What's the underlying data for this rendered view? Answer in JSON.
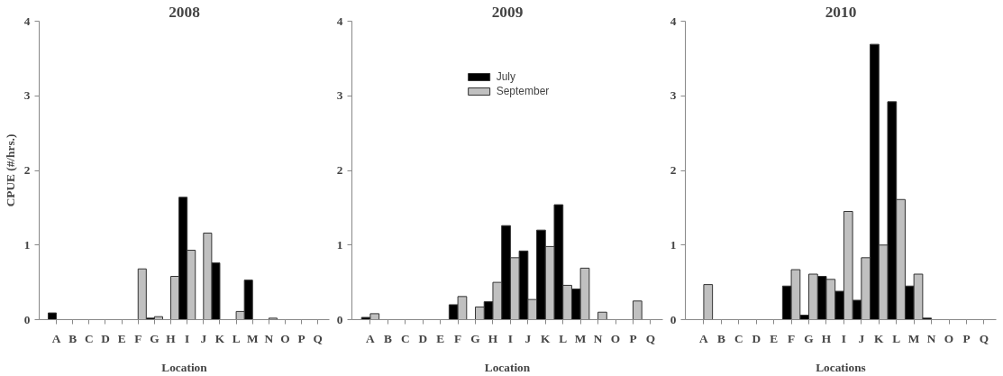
{
  "chart_data": [
    {
      "type": "bar",
      "title": "2008",
      "xlabel": "Location",
      "ylabel": "CPUE (#/hrs.)",
      "categories": [
        "A",
        "B",
        "C",
        "D",
        "E",
        "F",
        "G",
        "H",
        "I",
        "J",
        "K",
        "L",
        "M",
        "N",
        "O",
        "P",
        "Q"
      ],
      "ylim": [
        0,
        4
      ],
      "yticks": [
        0,
        1,
        2,
        3,
        4
      ],
      "grid": false,
      "series": [
        {
          "color": "#000000",
          "values": [
            0.09,
            0,
            0,
            0,
            0,
            0,
            0.02,
            0,
            1.64,
            0,
            0.76,
            0,
            0.53,
            0,
            0,
            0,
            0
          ]
        },
        {
          "color": "#c0c0c0",
          "values": [
            0,
            0,
            0,
            0,
            0,
            0.68,
            0.04,
            0.58,
            0.93,
            1.16,
            0,
            0.11,
            0,
            0.02,
            0,
            0,
            0
          ]
        }
      ]
    },
    {
      "type": "bar",
      "title": "2009",
      "xlabel": "Location",
      "categories": [
        "A",
        "B",
        "C",
        "D",
        "E",
        "F",
        "G",
        "H",
        "I",
        "J",
        "K",
        "L",
        "M",
        "N",
        "O",
        "P",
        "Q"
      ],
      "ylim": [
        0,
        4
      ],
      "yticks": [
        0,
        1,
        2,
        3,
        4
      ],
      "grid": false,
      "legend": "top",
      "series": [
        {
          "name": "July",
          "color": "#000000",
          "values": [
            0.03,
            0,
            0,
            0,
            0,
            0.2,
            0,
            0.24,
            1.26,
            0.92,
            1.2,
            1.54,
            0.41,
            0,
            0,
            0,
            0
          ]
        },
        {
          "name": "September",
          "color": "#c0c0c0",
          "values": [
            0.08,
            0,
            0,
            0,
            0,
            0.31,
            0.17,
            0.5,
            0.83,
            0.27,
            0.98,
            0.46,
            0.69,
            0.1,
            0,
            0.25,
            0
          ]
        }
      ]
    },
    {
      "type": "bar",
      "title": "2010",
      "xlabel": "Locations",
      "categories": [
        "A",
        "B",
        "C",
        "D",
        "E",
        "F",
        "G",
        "H",
        "I",
        "J",
        "K",
        "L",
        "M",
        "N",
        "O",
        "P",
        "Q"
      ],
      "ylim": [
        0,
        4
      ],
      "yticks": [
        0,
        1,
        2,
        3,
        4
      ],
      "grid": false,
      "series": [
        {
          "color": "#000000",
          "values": [
            0,
            0,
            0,
            0,
            0,
            0.45,
            0.06,
            0.58,
            0.38,
            0.26,
            3.69,
            2.92,
            0.45,
            0.02,
            0,
            0,
            0
          ]
        },
        {
          "color": "#c0c0c0",
          "values": [
            0.47,
            0,
            0,
            0,
            0,
            0.67,
            0.61,
            0.54,
            1.45,
            0.83,
            1.0,
            1.61,
            0.61,
            0,
            0,
            0,
            0
          ]
        }
      ]
    }
  ]
}
